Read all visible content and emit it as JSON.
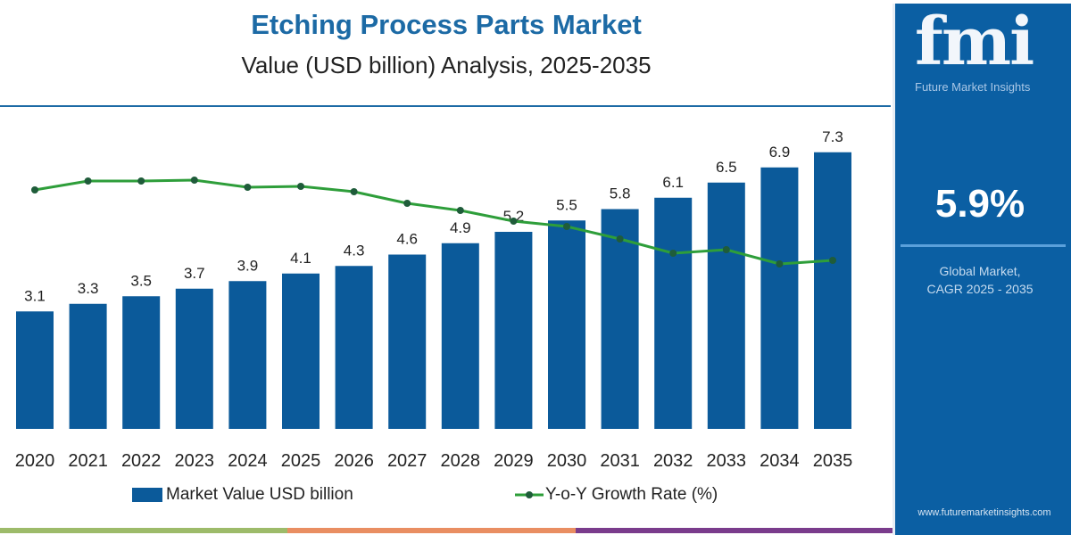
{
  "header": {
    "title": "Etching Process Parts Market",
    "subtitle": "Value (USD billion) Analysis, 2025-2035"
  },
  "sidebar": {
    "logo": "fmi",
    "logo_sub": "Future Market Insights",
    "cagr_value": "5.9%",
    "cagr_label_1": "Global Market,",
    "cagr_label_2": "CAGR 2025 - 2035",
    "url": "www.futuremarketinsights.com"
  },
  "colors": {
    "bar": "#0b5a9a",
    "line": "#2e9e3a",
    "marker": "#1f5c3a",
    "accent": "#1c6aa5",
    "stripes": [
      "#9dbb6a",
      "#e98e62",
      "#7a3c8c"
    ]
  },
  "chart_data": {
    "type": "bar+line",
    "categories": [
      "2020",
      "2021",
      "2022",
      "2023",
      "2024",
      "2025",
      "2026",
      "2027",
      "2028",
      "2029",
      "2030",
      "2031",
      "2032",
      "2033",
      "2034",
      "2035"
    ],
    "series": [
      {
        "name": "Market Value USD billion",
        "type": "bar",
        "values": [
          3.1,
          3.3,
          3.5,
          3.7,
          3.9,
          4.1,
          4.3,
          4.6,
          4.9,
          5.2,
          5.5,
          5.8,
          6.1,
          6.5,
          6.9,
          7.3
        ],
        "data_labels": [
          "3.1",
          "3.3",
          "3.5",
          "3.7",
          "3.9",
          "4.1",
          "4.3",
          "4.6",
          "4.9",
          "5.2",
          "5.5",
          "5.8",
          "6.1",
          "6.5",
          "6.9",
          "7.3"
        ]
      },
      {
        "name": "Y-o-Y Growth Rate (%)",
        "type": "line",
        "values": [
          6.28,
          6.48,
          6.48,
          6.5,
          6.34,
          6.36,
          6.24,
          5.98,
          5.82,
          5.58,
          5.46,
          5.18,
          4.86,
          4.94,
          4.62,
          4.7
        ]
      }
    ],
    "legend": "bottom"
  }
}
